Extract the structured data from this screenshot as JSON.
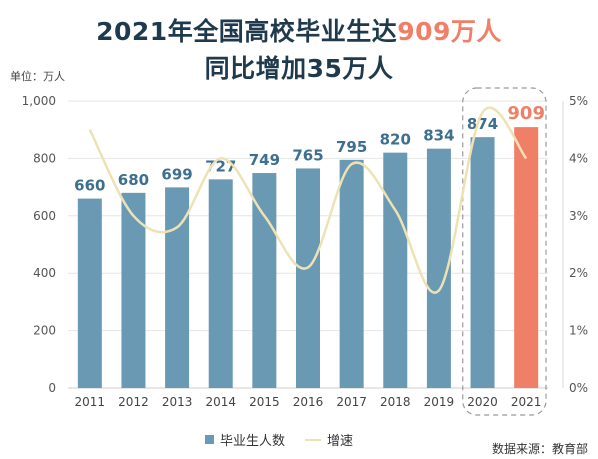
{
  "title": {
    "line1_a": "2021年全国高校毕业生达",
    "line1_b": "909万人",
    "line2": "同比增加35万人"
  },
  "unit_label": "单位：万人",
  "source": "数据来源：教育部",
  "legend": {
    "bar": "毕业生人数",
    "line": "增速"
  },
  "colors": {
    "bar": "#6a99b3",
    "bar_highlight": "#ef7f67",
    "line": "#eee2b4",
    "title": "#1f3a4d",
    "accent": "#ef7f67"
  },
  "chart_data": {
    "type": "bar",
    "categories": [
      "2011",
      "2012",
      "2013",
      "2014",
      "2015",
      "2016",
      "2017",
      "2018",
      "2019",
      "2020",
      "2021"
    ],
    "series": [
      {
        "name": "毕业生人数",
        "type": "bar",
        "axis": "left",
        "values": [
          660,
          680,
          699,
          727,
          749,
          765,
          795,
          820,
          834,
          874,
          909
        ]
      },
      {
        "name": "增速",
        "type": "line",
        "axis": "right",
        "values": [
          4.5,
          3.0,
          2.8,
          4.0,
          3.0,
          2.1,
          3.9,
          3.1,
          1.7,
          4.8,
          4.0
        ]
      }
    ],
    "data_labels": [
      "660",
      "680",
      "699",
      "727",
      "749",
      "765",
      "795",
      "820",
      "834",
      "874",
      "909"
    ],
    "left_axis": {
      "ticks": [
        "0",
        "200",
        "400",
        "600",
        "800",
        "1,000"
      ],
      "ylim": [
        0,
        1000
      ]
    },
    "right_axis": {
      "ticks": [
        "0%",
        "1%",
        "2%",
        "3%",
        "4%",
        "5%"
      ],
      "ylim": [
        0,
        5
      ]
    },
    "highlight_category": "2021",
    "boxed_categories": [
      "2020",
      "2021"
    ],
    "grid": true,
    "legend_position": "bottom-center"
  }
}
